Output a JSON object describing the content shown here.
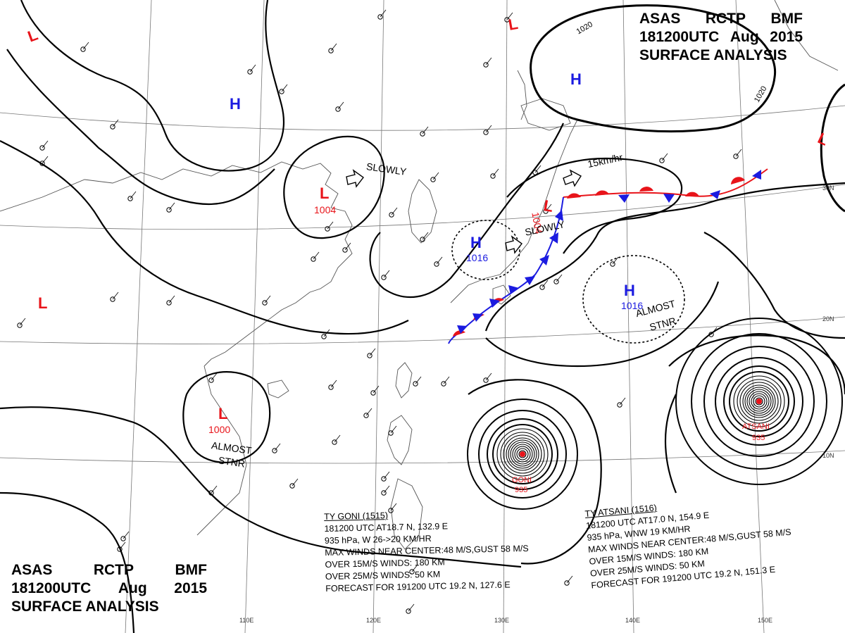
{
  "header": {
    "agency_row": [
      "ASAS",
      "RCTP",
      "BMF"
    ],
    "time_row": [
      "181200UTC",
      "Aug",
      "2015"
    ],
    "product": "SURFACE ANALYSIS"
  },
  "pressure_centers": [
    {
      "type": "L",
      "value": ""
    },
    {
      "type": "L",
      "value": ""
    },
    {
      "type": "L",
      "value": ""
    },
    {
      "type": "L",
      "value": ""
    },
    {
      "type": "L",
      "value": "1004"
    },
    {
      "type": "L",
      "value": "1004"
    },
    {
      "type": "L",
      "value": "1000"
    },
    {
      "type": "H",
      "value": ""
    },
    {
      "type": "H",
      "value": ""
    },
    {
      "type": "H",
      "value": "1016"
    },
    {
      "type": "H",
      "value": "1016"
    }
  ],
  "movements": [
    "SLOWLY",
    "SLOWLY",
    "15km/hr",
    "ALMOST",
    "STNR",
    "ALMOST",
    "STNR"
  ],
  "isobar_labels": [
    "1020",
    "1020"
  ],
  "coordinates": {
    "lat": [
      "30N",
      "20N",
      "10N"
    ],
    "lon": [
      "110E",
      "120E",
      "130E",
      "140E",
      "150E"
    ]
  },
  "typhoons": [
    {
      "name": "GONI",
      "pressure": "935"
    },
    {
      "name": "ATSANI",
      "pressure": "935"
    }
  ],
  "advisories": {
    "goni": {
      "title": "TY GONI (1515)",
      "lines": [
        "181200 UTC AT18.7 N, 132.9 E",
        "935 hPa, W 26->20 KM/HR",
        "MAX WINDS NEAR CENTER:48 M/S,GUST 58 M/S",
        "OVER 15M/S WINDS: 180 KM",
        "OVER 25M/S WINDS: 50 KM",
        "FORECAST FOR 191200 UTC 19.2 N, 127.6 E"
      ]
    },
    "atsani": {
      "title": "TY ATSANI (1516)",
      "lines": [
        "181200 UTC AT17.0 N, 154.9 E",
        "935 hPa, WNW 19 KM/HR",
        "MAX WINDS NEAR CENTER:48 M/S,GUST 58 M/S",
        "OVER 15M/S WINDS: 180 KM",
        "OVER 25M/S WINDS: 50 KM",
        "FORECAST FOR 191200 UTC 19.2 N, 151.3 E"
      ]
    }
  },
  "colors": {
    "low": "#e8141a",
    "high": "#1b1be0",
    "warm_front": "#e8141a",
    "cold_front": "#1b1be0"
  }
}
